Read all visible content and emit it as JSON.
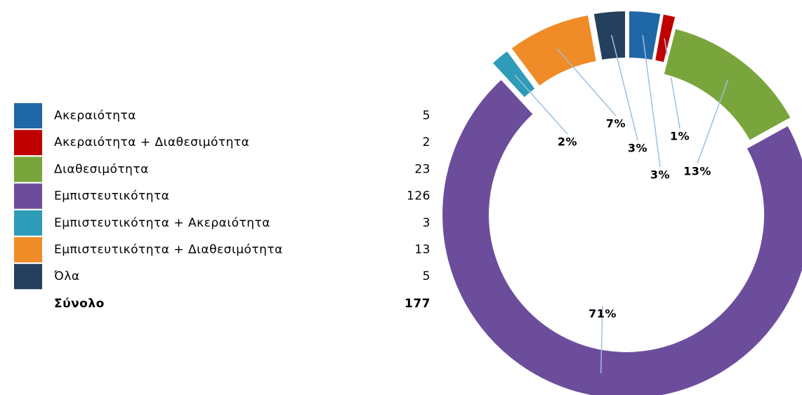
{
  "chart_data": {
    "type": "pie",
    "categories": [
      "Ακεραιότητα",
      "Ακεραιότητα + Διαθεσιμότητα",
      "Διαθεσιμότητα",
      "Εμπιστευτικότητα",
      "Εμπιστευτικότητα + Ακεραιότητα",
      "Εμπιστευτικότητα + Διαθεσιμότητα",
      "Όλα"
    ],
    "values": [
      5,
      2,
      23,
      126,
      3,
      13,
      5
    ],
    "value_labels": [
      "3%",
      "1%",
      "13%",
      "71%",
      "2%",
      "7%",
      "3%"
    ],
    "colors": [
      "#1f67a6",
      "#c00000",
      "#7aa53c",
      "#6c4d9c",
      "#2e9bb8",
      "#f08c28",
      "#25405f"
    ],
    "total_label": "Σύνολο",
    "total": 177,
    "donut": true
  }
}
